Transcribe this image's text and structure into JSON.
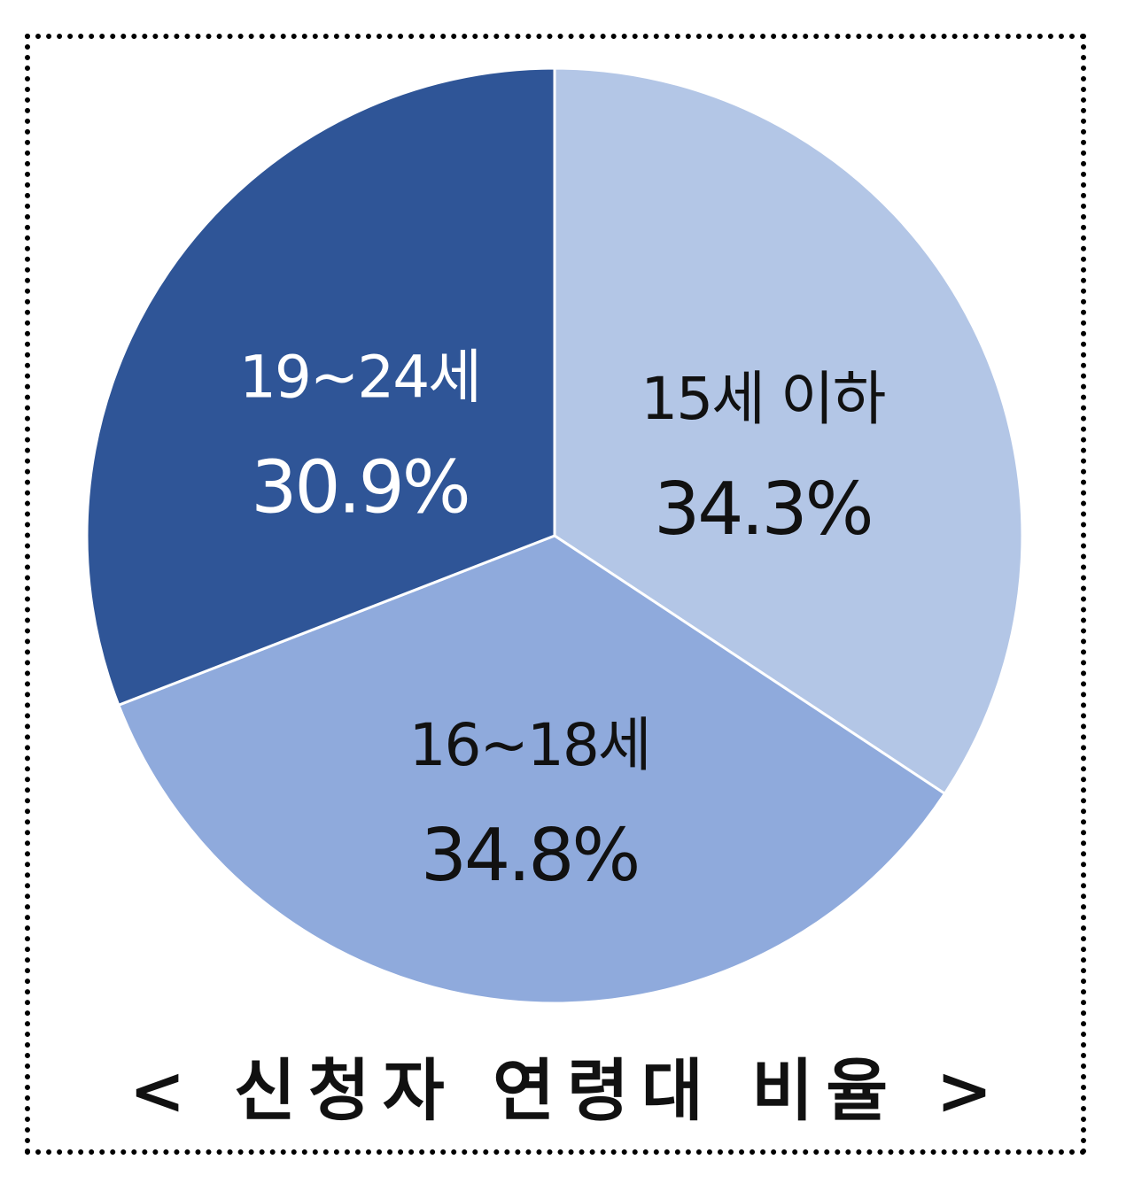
{
  "chart_data": {
    "type": "pie",
    "title": "< 신청자 연령대 비율 >",
    "slices": [
      {
        "label": "15세 이하",
        "value": 34.3,
        "value_label": "34.3%",
        "color": "#b3c6e6",
        "text_color": "#111111"
      },
      {
        "label": "16~18세",
        "value": 34.8,
        "value_label": "34.8%",
        "color": "#8faadc",
        "text_color": "#111111"
      },
      {
        "label": "19~24세",
        "value": 30.9,
        "value_label": "30.9%",
        "color": "#2f5597",
        "text_color": "#ffffff"
      }
    ],
    "start": "12 o'clock",
    "direction": "clockwise",
    "legend": "none",
    "labels": "inside"
  }
}
